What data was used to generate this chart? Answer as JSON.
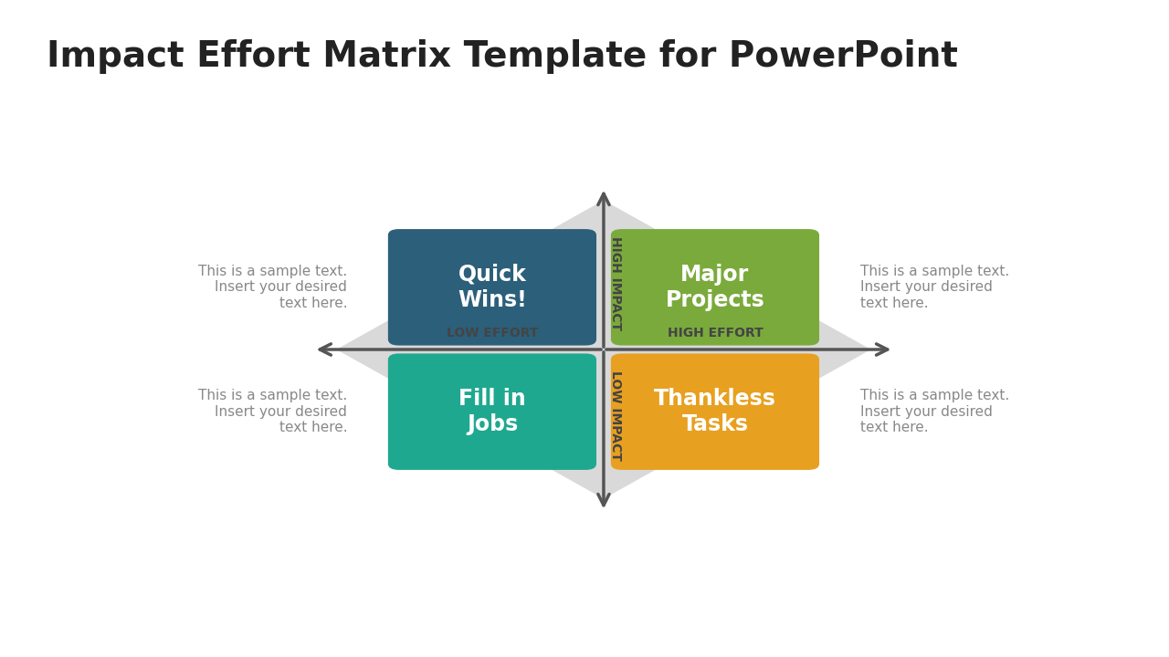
{
  "title": "Impact Effort Matrix Template for PowerPoint",
  "title_fontsize": 28,
  "title_color": "#222222",
  "bg_color": "#ffffff",
  "quadrants": [
    {
      "label": "Quick\nWins!",
      "color": "#2c5f7a"
    },
    {
      "label": "Major\nProjects",
      "color": "#7aaa3c"
    },
    {
      "label": "Fill in\nJobs",
      "color": "#1fa890"
    },
    {
      "label": "Thankless\nTasks",
      "color": "#e8a020"
    }
  ],
  "axis_label_color": "#444444",
  "axis_label_fontsize": 10,
  "quadrant_label_fontsize": 17,
  "quadrant_label_color": "#ffffff",
  "diamond_color": "#d5d5d5",
  "arrow_color": "#555555",
  "side_text": "This is a sample text.\nInsert your desired\ntext here.",
  "side_text_color": "#888888",
  "side_text_fontsize": 11,
  "axis_labels": {
    "high_impact": "HIGH IMPACT",
    "low_impact": "LOW IMPACT",
    "low_effort": "LOW EFFORT",
    "high_effort": "HIGH EFFORT"
  }
}
